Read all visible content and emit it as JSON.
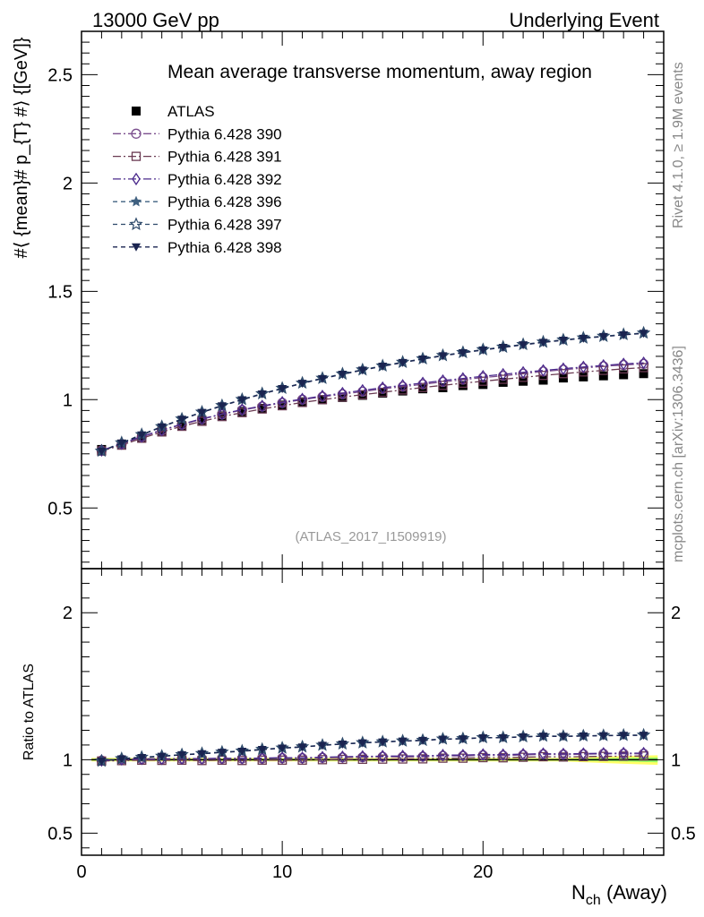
{
  "header": {
    "left": "13000 GeV pp",
    "right": "Underlying Event"
  },
  "side_text": {
    "rivet": "Rivet 4.1.0, ≥ 1.9M events",
    "mcplots": "mcplots.cern.ch [arXiv:1306.3436]"
  },
  "chart_data": {
    "type": "scatter",
    "title": "Mean average transverse momentum, away region",
    "analysis_label": "(ATLAS_2017_I1509919)",
    "xlabel": "N",
    "xlabel_sub": "ch",
    "xlabel_suffix": " (Away)",
    "ylabel": "#⟨ {mean}# p_{T} #⟩ {[GeV]}",
    "ratio_ylabel": "Ratio to ATLAS",
    "xlim": [
      0,
      29
    ],
    "ylim": [
      0.22,
      2.7
    ],
    "ratio_ylim": [
      0.35,
      2.3
    ],
    "x_ticks": [
      "0",
      "10",
      "20"
    ],
    "y_ticks": [
      "0.5",
      "1",
      "1.5",
      "2",
      "2.5"
    ],
    "ratio_ticks": [
      "0.5",
      "1",
      "2"
    ],
    "x": [
      1,
      2,
      3,
      4,
      5,
      6,
      7,
      8,
      9,
      10,
      11,
      12,
      13,
      14,
      15,
      16,
      17,
      18,
      19,
      20,
      21,
      22,
      23,
      24,
      25,
      26,
      27,
      28
    ],
    "series": [
      {
        "name": "ATLAS",
        "marker": "square-filled",
        "color": "#000000",
        "dash": "none",
        "values": [
          0.77,
          0.795,
          0.825,
          0.855,
          0.88,
          0.905,
          0.925,
          0.945,
          0.96,
          0.975,
          0.99,
          1.0,
          1.01,
          1.02,
          1.03,
          1.04,
          1.05,
          1.055,
          1.065,
          1.07,
          1.08,
          1.085,
          1.09,
          1.1,
          1.105,
          1.11,
          1.115,
          1.12
        ]
      },
      {
        "name": "Pythia 6.428 390",
        "marker": "circle-open",
        "color": "#7b4f8e",
        "dash": "9,3,2,3",
        "values": [
          0.765,
          0.795,
          0.828,
          0.858,
          0.885,
          0.91,
          0.932,
          0.952,
          0.968,
          0.985,
          1.0,
          1.013,
          1.025,
          1.037,
          1.05,
          1.06,
          1.071,
          1.082,
          1.092,
          1.102,
          1.11,
          1.12,
          1.13,
          1.138,
          1.146,
          1.154,
          1.16,
          1.165
        ]
      },
      {
        "name": "Pythia 6.428 391",
        "marker": "square-open",
        "color": "#6a3a52",
        "dash": "9,3,2,3",
        "values": [
          0.763,
          0.79,
          0.822,
          0.851,
          0.877,
          0.9,
          0.922,
          0.94,
          0.957,
          0.972,
          0.987,
          1.0,
          1.012,
          1.023,
          1.034,
          1.045,
          1.056,
          1.066,
          1.076,
          1.085,
          1.094,
          1.103,
          1.112,
          1.12,
          1.128,
          1.135,
          1.142,
          1.148
        ]
      },
      {
        "name": "Pythia 6.428 392",
        "marker": "diamond-open",
        "color": "#4b2a8c",
        "dash": "9,3,2,3",
        "values": [
          0.766,
          0.797,
          0.83,
          0.86,
          0.887,
          0.912,
          0.934,
          0.954,
          0.971,
          0.988,
          1.003,
          1.017,
          1.03,
          1.043,
          1.055,
          1.066,
          1.077,
          1.088,
          1.098,
          1.108,
          1.117,
          1.126,
          1.135,
          1.143,
          1.151,
          1.158,
          1.165,
          1.17
        ]
      },
      {
        "name": "Pythia 6.428 396",
        "marker": "star-filled",
        "color": "#3f6080",
        "dash": "5,4",
        "values": [
          0.762,
          0.8,
          0.838,
          0.875,
          0.91,
          0.942,
          0.972,
          1.0,
          1.027,
          1.052,
          1.076,
          1.098,
          1.118,
          1.137,
          1.155,
          1.172,
          1.188,
          1.203,
          1.217,
          1.23,
          1.242,
          1.254,
          1.265,
          1.275,
          1.284,
          1.292,
          1.3,
          1.307
        ]
      },
      {
        "name": "Pythia 6.428 397",
        "marker": "star-open",
        "color": "#2e4a6a",
        "dash": "5,4",
        "values": [
          0.763,
          0.801,
          0.839,
          0.876,
          0.911,
          0.943,
          0.973,
          1.001,
          1.028,
          1.053,
          1.077,
          1.099,
          1.119,
          1.138,
          1.156,
          1.173,
          1.189,
          1.204,
          1.218,
          1.231,
          1.243,
          1.255,
          1.266,
          1.276,
          1.285,
          1.293,
          1.301,
          1.308
        ]
      },
      {
        "name": "Pythia 6.428 398",
        "marker": "triangle-down-filled",
        "color": "#1a2450",
        "dash": "5,4",
        "values": [
          0.762,
          0.799,
          0.837,
          0.874,
          0.909,
          0.941,
          0.971,
          0.999,
          1.026,
          1.051,
          1.075,
          1.097,
          1.117,
          1.136,
          1.154,
          1.171,
          1.187,
          1.202,
          1.216,
          1.229,
          1.241,
          1.253,
          1.264,
          1.274,
          1.283,
          1.291,
          1.299,
          1.306
        ]
      }
    ]
  }
}
